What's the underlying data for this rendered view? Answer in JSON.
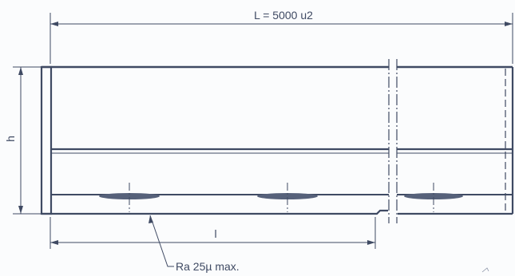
{
  "labels": {
    "overall_length": "L = 5000 u2",
    "height": "h",
    "segment_length": "l",
    "roughness_note": "Ra 25µ max."
  },
  "colors": {
    "line": "#3f4a63",
    "weld": "#56617a",
    "paper": "#fbfcfd"
  }
}
